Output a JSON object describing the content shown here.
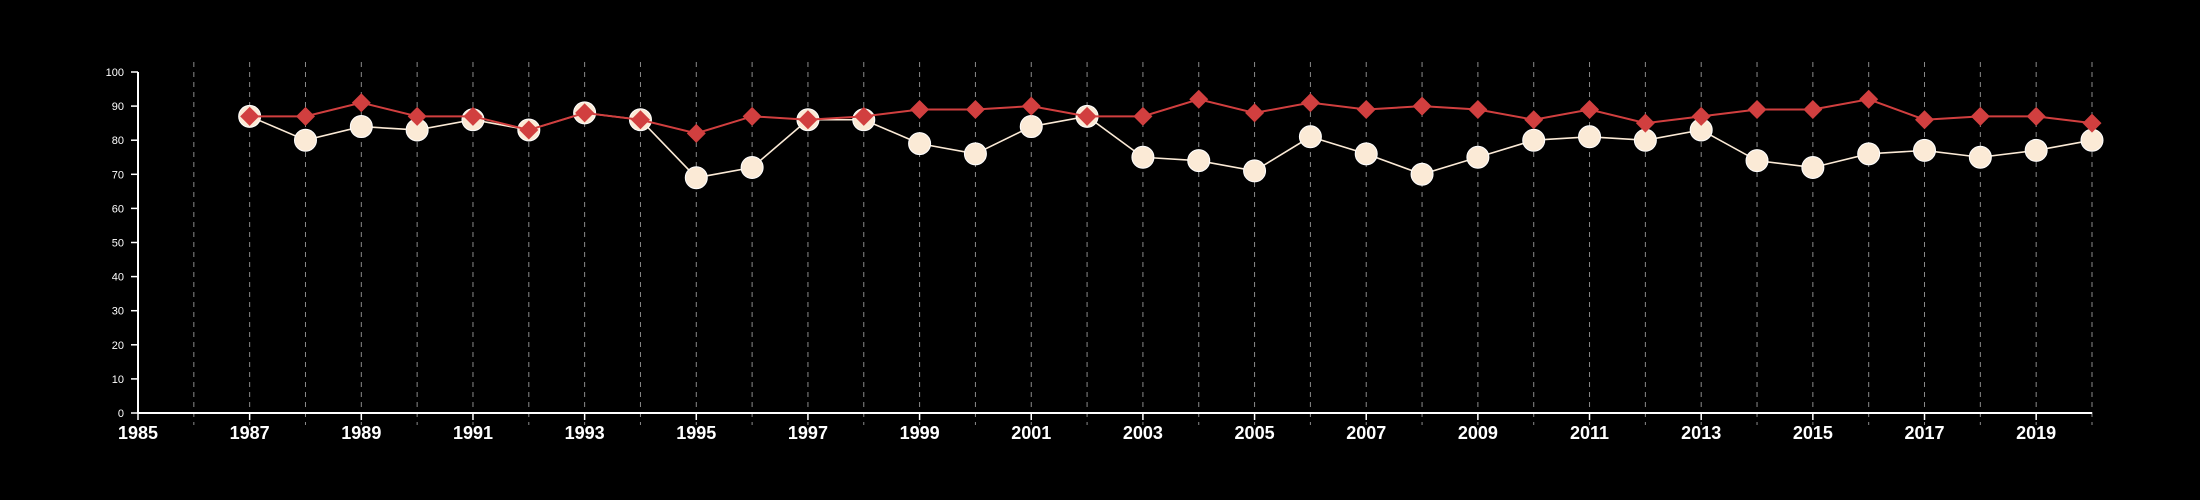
{
  "chart_data": {
    "type": "line",
    "title": "",
    "xlabel": "",
    "ylabel": "",
    "xlim": [
      1985,
      2020
    ],
    "ylim": [
      0,
      100
    ],
    "y_ticks": [
      "0",
      "10",
      "20",
      "30",
      "40",
      "50",
      "60",
      "70",
      "80",
      "90",
      "100"
    ],
    "x_ticks": [
      "1985",
      "1987",
      "1989",
      "1991",
      "1993",
      "1995",
      "1997",
      "1999",
      "2001",
      "2003",
      "2005",
      "2007",
      "2009",
      "2011",
      "2013",
      "2015",
      "2017",
      "2019"
    ],
    "grid": {
      "vertical": true,
      "horizontal": false,
      "style": "dashed",
      "every_year": true
    },
    "legend": "none",
    "background": "#000000",
    "x": [
      1987,
      1988,
      1989,
      1990,
      1991,
      1992,
      1993,
      1994,
      1995,
      1996,
      1997,
      1998,
      1999,
      2000,
      2001,
      2002,
      2003,
      2004,
      2005,
      2006,
      2007,
      2008,
      2009,
      2010,
      2011,
      2012,
      2013,
      2014,
      2015,
      2016,
      2017,
      2018,
      2019,
      2020
    ],
    "series": [
      {
        "marker": "diamond",
        "color": "#d13f3f",
        "values": [
          87,
          87,
          91,
          87,
          87,
          83,
          88,
          86,
          82,
          87,
          86,
          87,
          89,
          89,
          90,
          87,
          87,
          92,
          88,
          91,
          89,
          90,
          89,
          86,
          89,
          85,
          87,
          89,
          89,
          92,
          86,
          87,
          87,
          85
        ]
      },
      {
        "marker": "circle",
        "color": "#fbead6",
        "values": [
          87,
          80,
          84,
          83,
          86,
          83,
          88,
          86,
          69,
          72,
          86,
          86,
          79,
          76,
          84,
          87,
          75,
          74,
          71,
          81,
          76,
          70,
          75,
          80,
          81,
          80,
          83,
          74,
          72,
          76,
          77,
          75,
          77,
          80
        ]
      }
    ]
  }
}
